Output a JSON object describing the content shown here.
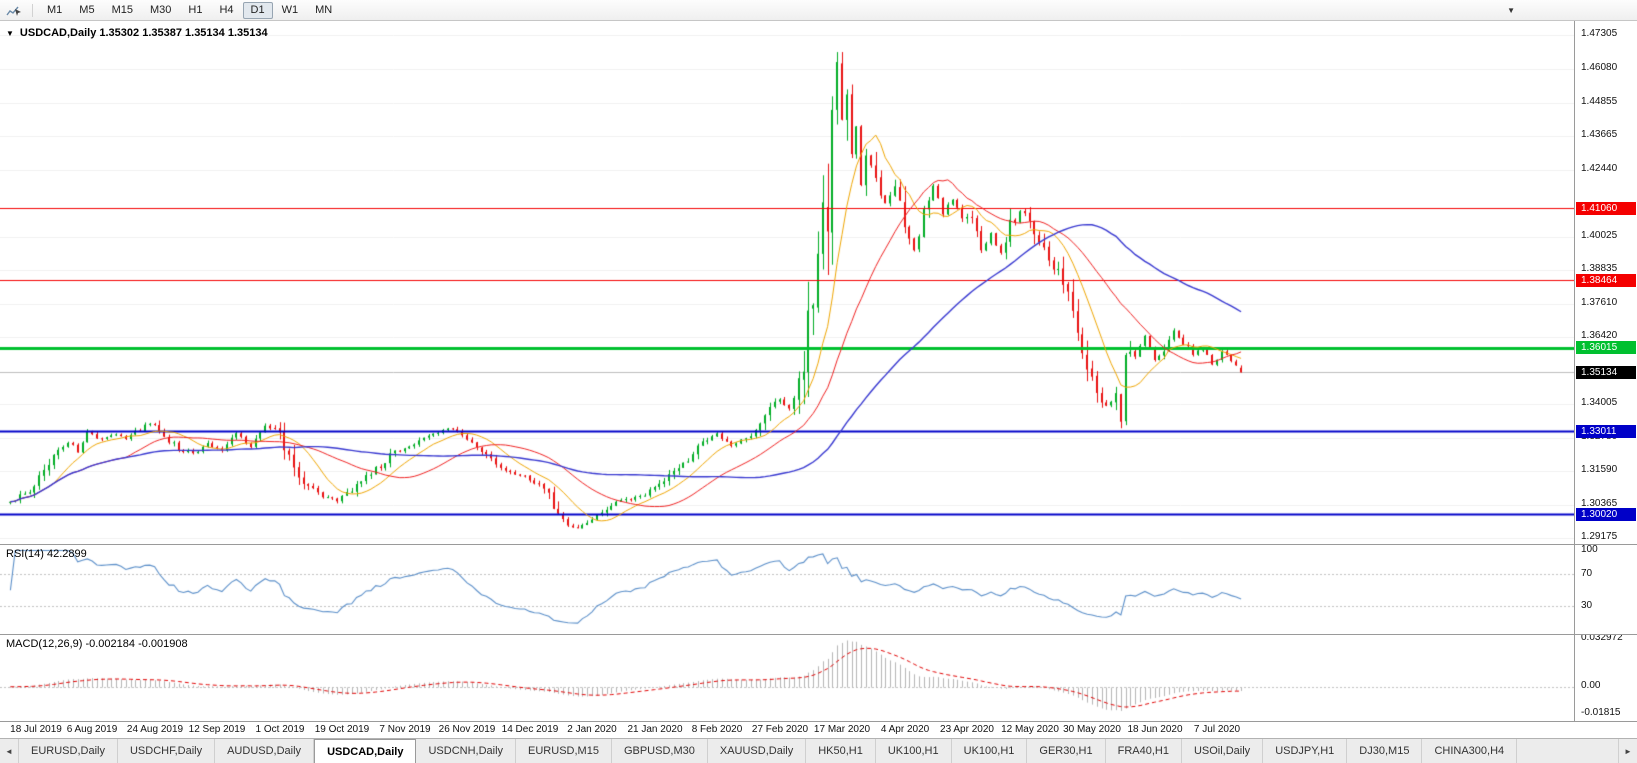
{
  "toolbar": {
    "timeframes": [
      "M1",
      "M5",
      "M15",
      "M30",
      "H1",
      "H4",
      "D1",
      "W1",
      "MN"
    ],
    "active": "D1"
  },
  "icons": {
    "chart_menu": "▼",
    "toolbar_overflow": "▼",
    "tab_scroll_left": "◄",
    "tab_scroll_right": "►",
    "cursor_chart": "chart-cursor"
  },
  "chart": {
    "symbol_period": "USDCAD,Daily",
    "ohlc": {
      "open": "1.35302",
      "high": "1.35387",
      "low": "1.35134",
      "close": "1.35134"
    }
  },
  "chart_data": {
    "type": "candlestick",
    "title": "USDCAD,Daily",
    "symbol": "USDCAD",
    "timeframe": "Daily",
    "candle_count": 257,
    "price_range": {
      "min": 1.2895,
      "max": 1.478
    },
    "extremes": {
      "high": 1.4668,
      "low": 1.2952
    },
    "y_ticks": [
      "1.47305",
      "1.46080",
      "1.44855",
      "1.43665",
      "1.42440",
      "1.40025",
      "1.38835",
      "1.37610",
      "1.36420",
      "1.34005",
      "1.32780",
      "1.31590",
      "1.30365",
      "1.29175"
    ],
    "price_path": [
      [
        0,
        1.3045
      ],
      [
        3,
        1.3075
      ],
      [
        6,
        1.313
      ],
      [
        9,
        1.3205
      ],
      [
        12,
        1.3265
      ],
      [
        14,
        1.323
      ],
      [
        16,
        1.33
      ],
      [
        18,
        1.327
      ],
      [
        21,
        1.329
      ],
      [
        24,
        1.328
      ],
      [
        27,
        1.331
      ],
      [
        29,
        1.3335
      ],
      [
        32,
        1.329
      ],
      [
        35,
        1.324
      ],
      [
        38,
        1.322
      ],
      [
        41,
        1.3255
      ],
      [
        44,
        1.323
      ],
      [
        47,
        1.329
      ],
      [
        50,
        1.325
      ],
      [
        53,
        1.332
      ],
      [
        56,
        1.3295
      ],
      [
        59,
        1.317
      ],
      [
        62,
        1.3095
      ],
      [
        65,
        1.307
      ],
      [
        68,
        1.3055
      ],
      [
        71,
        1.3085
      ],
      [
        74,
        1.314
      ],
      [
        77,
        1.3175
      ],
      [
        80,
        1.323
      ],
      [
        83,
        1.3245
      ],
      [
        86,
        1.328
      ],
      [
        89,
        1.33
      ],
      [
        91,
        1.331
      ],
      [
        94,
        1.3285
      ],
      [
        97,
        1.324
      ],
      [
        100,
        1.3195
      ],
      [
        103,
        1.3165
      ],
      [
        106,
        1.3145
      ],
      [
        109,
        1.3115
      ],
      [
        112,
        1.308
      ],
      [
        114,
        1.299
      ],
      [
        116,
        1.2965
      ],
      [
        118,
        1.2955
      ],
      [
        120,
        1.2975
      ],
      [
        123,
        1.3005
      ],
      [
        126,
        1.3045
      ],
      [
        129,
        1.306
      ],
      [
        132,
        1.3075
      ],
      [
        135,
        1.3105
      ],
      [
        138,
        1.316
      ],
      [
        141,
        1.32
      ],
      [
        144,
        1.3255
      ],
      [
        147,
        1.329
      ],
      [
        150,
        1.3245
      ],
      [
        153,
        1.328
      ],
      [
        156,
        1.331
      ],
      [
        158,
        1.339
      ],
      [
        160,
        1.342
      ],
      [
        162,
        1.3385
      ],
      [
        164,
        1.345
      ],
      [
        166,
        1.366
      ],
      [
        168,
        1.392
      ],
      [
        170,
        1.41
      ],
      [
        171,
        1.45
      ],
      [
        172,
        1.464
      ],
      [
        173,
        1.445
      ],
      [
        174,
        1.451
      ],
      [
        175,
        1.425
      ],
      [
        176,
        1.436
      ],
      [
        177,
        1.419
      ],
      [
        178,
        1.43
      ],
      [
        180,
        1.421
      ],
      [
        182,
        1.412
      ],
      [
        184,
        1.418
      ],
      [
        186,
        1.402
      ],
      [
        188,
        1.395
      ],
      [
        190,
        1.409
      ],
      [
        192,
        1.418
      ],
      [
        194,
        1.409
      ],
      [
        196,
        1.414
      ],
      [
        198,
        1.406
      ],
      [
        200,
        1.409
      ],
      [
        202,
        1.396
      ],
      [
        204,
        1.401
      ],
      [
        206,
        1.394
      ],
      [
        208,
        1.404
      ],
      [
        210,
        1.41
      ],
      [
        212,
        1.406
      ],
      [
        214,
        1.398
      ],
      [
        216,
        1.39
      ],
      [
        218,
        1.387
      ],
      [
        220,
        1.378
      ],
      [
        222,
        1.368
      ],
      [
        224,
        1.356
      ],
      [
        226,
        1.343
      ],
      [
        228,
        1.339
      ],
      [
        230,
        1.343
      ],
      [
        231,
        1.337
      ],
      [
        232,
        1.356
      ],
      [
        233,
        1.361
      ],
      [
        234,
        1.358
      ],
      [
        236,
        1.364
      ],
      [
        238,
        1.356
      ],
      [
        240,
        1.36
      ],
      [
        242,
        1.367
      ],
      [
        244,
        1.362
      ],
      [
        246,
        1.358
      ],
      [
        248,
        1.36
      ],
      [
        250,
        1.3545
      ],
      [
        252,
        1.3585
      ],
      [
        254,
        1.356
      ],
      [
        256,
        1.35134
      ]
    ],
    "h_lines": [
      {
        "price": 1.4106,
        "label": "1.41060",
        "color": "#f40000",
        "width": 1.2
      },
      {
        "price": 1.38464,
        "label": "1.38464",
        "color": "#f40000",
        "width": 1.2
      },
      {
        "price": 1.36015,
        "label": "1.36015",
        "color": "#00c02f",
        "width": 3
      },
      {
        "price": 1.33011,
        "label": "1.33011",
        "color": "#0000c8",
        "width": 2
      },
      {
        "price": 1.3002,
        "label": "1.30020",
        "color": "#0000c8",
        "width": 2
      }
    ],
    "current_price": {
      "value": 1.35134,
      "label": "1.35134",
      "line_color": "#bcbcbc",
      "badge_color": "#000000"
    },
    "candles": {
      "up_color": "#00ad25",
      "down_color": "#e81010"
    },
    "moving_averages": [
      {
        "period": 10,
        "color": "#eea500",
        "width": 1
      },
      {
        "period": 25,
        "color": "#ef2020",
        "width": 1
      },
      {
        "period": 60,
        "color": "#3838d0",
        "width": 1.4
      }
    ],
    "x_labels": [
      "18 Jul 2019",
      "6 Aug 2019",
      "24 Aug 2019",
      "12 Sep 2019",
      "1 Oct 2019",
      "19 Oct 2019",
      "7 Nov 2019",
      "26 Nov 2019",
      "14 Dec 2019",
      "2 Jan 2020",
      "21 Jan 2020",
      "8 Feb 2020",
      "27 Feb 2020",
      "17 Mar 2020",
      "4 Apr 2020",
      "23 Apr 2020",
      "12 May 2020",
      "30 May 2020",
      "18 Jun 2020",
      "7 Jul 2020"
    ],
    "x_label_first_index": 4,
    "x_label_step": 13,
    "indicators": {
      "rsi": {
        "name": "RSI(14)",
        "period": 14,
        "current": "42.2899",
        "color": "#5b8fc9",
        "level_color": "#c0c0c0",
        "range": {
          "min": -5,
          "max": 107
        },
        "ticks": [
          {
            "label": "100",
            "value": 100,
            "line": false
          },
          {
            "label": "70",
            "value": 70,
            "line": true
          },
          {
            "label": "30",
            "value": 30,
            "line": true
          }
        ]
      },
      "macd": {
        "name": "MACD(12,26,9)",
        "fast": 12,
        "slow": 26,
        "signal": 9,
        "current_main": "-0.002184",
        "current_signal": "-0.001908",
        "hist_color": "#b4b4b4",
        "signal_color": "#e00000",
        "zero_color": "#c0c0c0",
        "range": {
          "min": -0.0235,
          "max": 0.0355
        },
        "ticks": [
          {
            "label": "0.032972",
            "value": 0.032972
          },
          {
            "label": "0.00",
            "value": 0
          },
          {
            "label": "-0.01815",
            "value": -0.01815
          }
        ]
      }
    }
  },
  "tabs": {
    "items": [
      "EURUSD,Daily",
      "USDCHF,Daily",
      "AUDUSD,Daily",
      "USDCAD,Daily",
      "USDCNH,Daily",
      "EURUSD,M15",
      "GBPUSD,M30",
      "XAUUSD,Daily",
      "HK50,H1",
      "UK100,H1",
      "UK100,H1",
      "GER30,H1",
      "FRA40,H1",
      "USOil,Daily",
      "USDJPY,H1",
      "DJ30,M15",
      "CHINA300,H4"
    ],
    "active_index": 3
  }
}
